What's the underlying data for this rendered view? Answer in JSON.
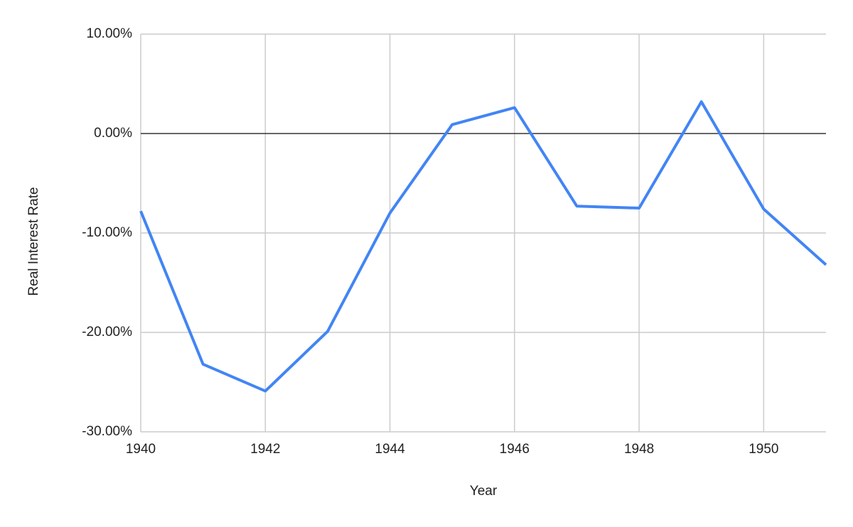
{
  "chart_data": {
    "type": "line",
    "x_label": "Year",
    "y_label": "Real Interest Rate",
    "x": [
      1940,
      1941,
      1942,
      1943,
      1944,
      1945,
      1946,
      1947,
      1948,
      1949,
      1950,
      1951
    ],
    "series": [
      {
        "name": "Real Interest Rate",
        "color": "#4285f4",
        "values": [
          -7.8,
          -23.2,
          -25.9,
          -19.9,
          -8.0,
          0.9,
          2.6,
          -7.3,
          -7.5,
          3.2,
          -7.6,
          -13.2
        ]
      }
    ],
    "xlim": [
      1940,
      1951
    ],
    "xticks": [
      1940,
      1942,
      1944,
      1946,
      1948,
      1950
    ],
    "ylim": [
      -30,
      10
    ],
    "yticks": [
      {
        "value": -30,
        "label": "-30.00%"
      },
      {
        "value": -20,
        "label": "-20.00%"
      },
      {
        "value": -10,
        "label": "-10.00%"
      },
      {
        "value": 0,
        "label": "0.00%"
      },
      {
        "value": 10,
        "label": "10.00%"
      }
    ],
    "grid": true
  }
}
